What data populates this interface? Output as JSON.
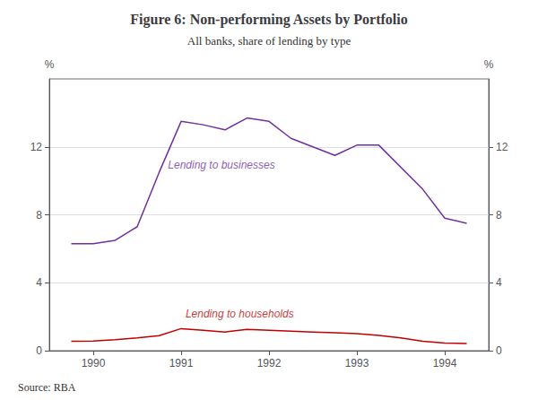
{
  "chart_data": {
    "type": "line",
    "title": "Figure 6: Non-performing Assets by Portfolio",
    "subtitle": "All banks, share of lending by type",
    "source": "Source: RBA",
    "ylabel": "%",
    "y2label": "%",
    "series": [
      {
        "name": "Lending to businesses",
        "color": "#7030A0",
        "x": [
          1989.75,
          1990.0,
          1990.25,
          1990.5,
          1990.75,
          1991.0,
          1991.25,
          1991.5,
          1991.75,
          1992.0,
          1992.25,
          1992.5,
          1992.75,
          1993.0,
          1993.25,
          1993.75,
          1994.0,
          1994.25
        ],
        "values": [
          6.3,
          6.3,
          6.5,
          7.3,
          10.5,
          13.5,
          13.3,
          13.0,
          13.7,
          13.5,
          12.5,
          12.0,
          11.5,
          12.1,
          12.1,
          9.5,
          7.8,
          7.5
        ]
      },
      {
        "name": "Lending to households",
        "color": "#C00000",
        "x": [
          1989.75,
          1990.0,
          1990.25,
          1990.5,
          1990.75,
          1991.0,
          1991.25,
          1991.5,
          1991.75,
          1992.0,
          1992.25,
          1992.5,
          1992.75,
          1993.0,
          1993.25,
          1993.5,
          1993.75,
          1994.0,
          1994.25
        ],
        "values": [
          0.55,
          0.57,
          0.65,
          0.75,
          0.88,
          1.3,
          1.2,
          1.1,
          1.25,
          1.2,
          1.15,
          1.1,
          1.05,
          1.0,
          0.9,
          0.75,
          0.55,
          0.45,
          0.42
        ]
      }
    ],
    "annotations": [
      {
        "text": "Lending to businesses",
        "x": 1990.85,
        "y": 10.6,
        "color": "#7030A0"
      },
      {
        "text": "Lending to households",
        "x": 1991.05,
        "y": 1.85,
        "color": "#C00000"
      }
    ],
    "xlim": [
      1989.5,
      1994.5
    ],
    "xticks": [
      1990,
      1991,
      1992,
      1993,
      1994
    ],
    "ylim": [
      0,
      16
    ],
    "yticks": [
      0,
      4,
      8,
      12
    ],
    "y2lim": [
      0,
      16
    ],
    "y2ticks": [
      0,
      4,
      8,
      12
    ],
    "grid": true
  }
}
